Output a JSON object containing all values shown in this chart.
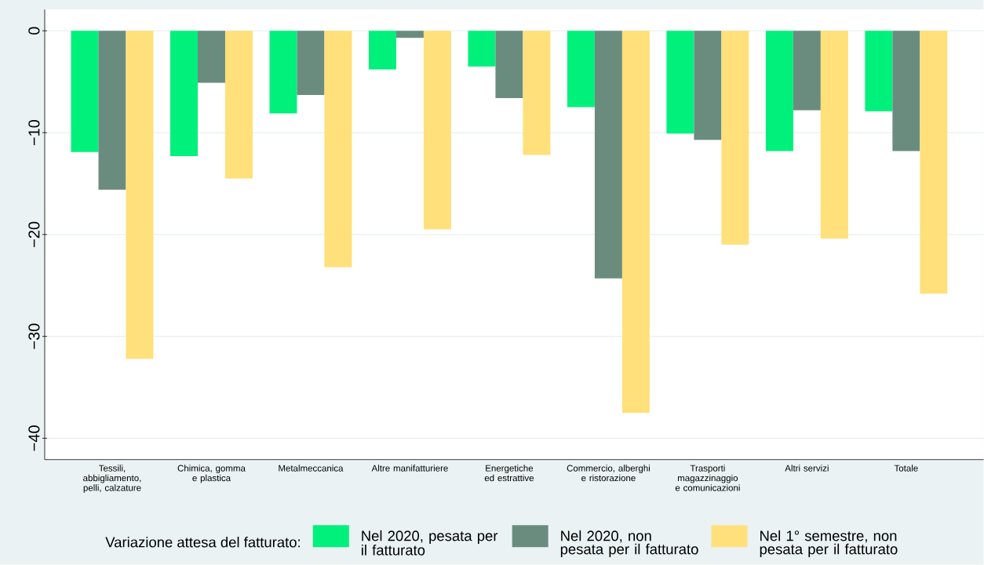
{
  "chart_data": {
    "type": "bar",
    "categories": [
      "Tessili, abbigliamento, pelli, calzature",
      "Chimica, gomma e plastica",
      "Metalmeccanica",
      "Altre manifatturiere",
      "Energetiche ed estrattive",
      "Commercio, alberghi e ristorazione",
      "Trasporti magazzinaggio e comunicazioni",
      "Altri servizi",
      "Totale"
    ],
    "series": [
      {
        "name": "Nel 2020, pesata per il fatturato",
        "color": "#00f07c",
        "values": [
          -11.9,
          -12.3,
          -8.1,
          -3.8,
          -3.5,
          -7.5,
          -10.1,
          -11.8,
          -7.9
        ]
      },
      {
        "name": "Nel 2020, non pesata per il fatturato",
        "color": "#6a8c7e",
        "values": [
          -15.6,
          -5.1,
          -6.3,
          -0.7,
          -6.6,
          -24.3,
          -10.7,
          -7.8,
          -11.8
        ]
      },
      {
        "name": "Nel 1° semestre, non pesata per il fatturato",
        "color": "#ffe07a",
        "values": [
          -32.2,
          -14.5,
          -23.2,
          -19.5,
          -12.2,
          -37.5,
          -21.0,
          -20.4,
          -25.8
        ]
      }
    ],
    "legend_title": "Variazione attesa del fatturato:",
    "ylim": [
      -42.1,
      2.1
    ],
    "yticks": [
      {
        "value": -40,
        "label": "−40"
      },
      {
        "value": -30,
        "label": "−30"
      },
      {
        "value": -20,
        "label": "−20"
      },
      {
        "value": -10,
        "label": "−10"
      },
      0
    ],
    "grid": "y",
    "legend": "bottom"
  }
}
